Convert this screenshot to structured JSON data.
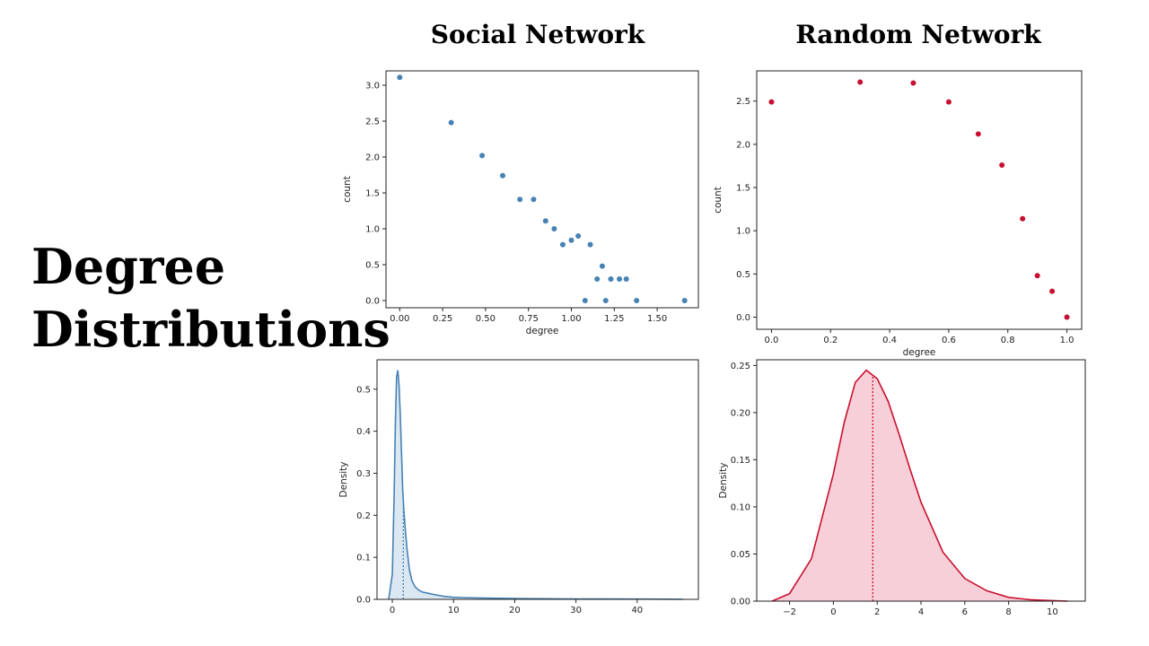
{
  "slide": {
    "title_line1": "Degree",
    "title_line2": "Distributions",
    "column_left": "Social Network",
    "column_right": "Random Network"
  },
  "chart_data": [
    {
      "id": "social-scatter",
      "type": "scatter",
      "title": "",
      "xlabel": "degree",
      "ylabel": "count",
      "xlim": [
        -0.08,
        1.74
      ],
      "ylim": [
        -0.1,
        3.2
      ],
      "xticks": [
        0.0,
        0.25,
        0.5,
        0.75,
        1.0,
        1.25,
        1.5
      ],
      "xtick_labels": [
        "0.00",
        "0.25",
        "0.50",
        "0.75",
        "1.00",
        "1.25",
        "1.50"
      ],
      "yticks": [
        0.0,
        0.5,
        1.0,
        1.5,
        2.0,
        2.5,
        3.0
      ],
      "ytick_labels": [
        "0.0",
        "0.5",
        "1.0",
        "1.5",
        "2.0",
        "2.5",
        "3.0"
      ],
      "color": "#4682b4",
      "points": [
        [
          0.0,
          3.11
        ],
        [
          0.3,
          2.48
        ],
        [
          0.48,
          2.02
        ],
        [
          0.6,
          1.74
        ],
        [
          0.7,
          1.41
        ],
        [
          0.78,
          1.41
        ],
        [
          0.85,
          1.11
        ],
        [
          0.9,
          1.0
        ],
        [
          0.95,
          0.78
        ],
        [
          1.0,
          0.84
        ],
        [
          1.04,
          0.9
        ],
        [
          1.08,
          0.0
        ],
        [
          1.11,
          0.78
        ],
        [
          1.15,
          0.3
        ],
        [
          1.18,
          0.48
        ],
        [
          1.2,
          0.0
        ],
        [
          1.23,
          0.3
        ],
        [
          1.28,
          0.3
        ],
        [
          1.32,
          0.3
        ],
        [
          1.38,
          0.0
        ],
        [
          1.66,
          0.0
        ]
      ]
    },
    {
      "id": "random-scatter",
      "type": "scatter",
      "title": "",
      "xlabel": "degree",
      "ylabel": "count",
      "xlim": [
        -0.05,
        1.05
      ],
      "ylim": [
        -0.14,
        2.85
      ],
      "xticks": [
        0.0,
        0.2,
        0.4,
        0.6,
        0.8,
        1.0
      ],
      "xtick_labels": [
        "0.0",
        "0.2",
        "0.4",
        "0.6",
        "0.8",
        "1.0"
      ],
      "yticks": [
        0.0,
        0.5,
        1.0,
        1.5,
        2.0,
        2.5
      ],
      "ytick_labels": [
        "0.0",
        "0.5",
        "1.0",
        "1.5",
        "2.0",
        "2.5"
      ],
      "color": "#c8102e",
      "points": [
        [
          0.0,
          2.49
        ],
        [
          0.3,
          2.72
        ],
        [
          0.48,
          2.71
        ],
        [
          0.6,
          2.49
        ],
        [
          0.7,
          2.12
        ],
        [
          0.78,
          1.76
        ],
        [
          0.85,
          1.14
        ],
        [
          0.9,
          0.48
        ],
        [
          0.95,
          0.3
        ],
        [
          1.0,
          0.0
        ]
      ]
    },
    {
      "id": "social-kde",
      "type": "area",
      "title": "",
      "xlabel": "",
      "ylabel": "Density",
      "xlim": [
        -2.5,
        50
      ],
      "ylim": [
        0,
        0.57
      ],
      "xticks": [
        0,
        10,
        20,
        30,
        40
      ],
      "xtick_labels": [
        "0",
        "10",
        "20",
        "30",
        "40"
      ],
      "yticks": [
        0.0,
        0.1,
        0.2,
        0.3,
        0.4,
        0.5
      ],
      "ytick_labels": [
        "0.0",
        "0.1",
        "0.2",
        "0.3",
        "0.4",
        "0.5"
      ],
      "color": "#4682b4",
      "fill": "#dbe7f1",
      "mean": 1.8,
      "x": [
        -0.6,
        0,
        0.3,
        0.5,
        0.7,
        0.9,
        1.1,
        1.3,
        1.5,
        1.7,
        1.9,
        2.1,
        2.4,
        2.8,
        3.2,
        3.7,
        4.3,
        5.0,
        6.0,
        7.0,
        8.5,
        10,
        12,
        15,
        20,
        25,
        30,
        35,
        40,
        45,
        47.5
      ],
      "y": [
        0.0,
        0.06,
        0.25,
        0.42,
        0.53,
        0.545,
        0.51,
        0.44,
        0.35,
        0.26,
        0.21,
        0.17,
        0.12,
        0.07,
        0.045,
        0.03,
        0.022,
        0.017,
        0.014,
        0.011,
        0.007,
        0.005,
        0.004,
        0.003,
        0.002,
        0.0015,
        0.001,
        0.001,
        0.0008,
        0.0005,
        0.0
      ]
    },
    {
      "id": "random-kde",
      "type": "area",
      "title": "",
      "xlabel": "",
      "ylabel": "Density",
      "xlim": [
        -3.5,
        11.5
      ],
      "ylim": [
        0,
        0.256
      ],
      "xticks": [
        -2,
        0,
        2,
        4,
        6,
        8,
        10
      ],
      "xtick_labels": [
        "−2",
        "0",
        "2",
        "4",
        "6",
        "8",
        "10"
      ],
      "yticks": [
        0.0,
        0.05,
        0.1,
        0.15,
        0.2,
        0.25
      ],
      "ytick_labels": [
        "0.00",
        "0.05",
        "0.10",
        "0.15",
        "0.20",
        "0.25"
      ],
      "color": "#c8102e",
      "fill": "#f7cfd8",
      "mean": 1.8,
      "x": [
        -2.8,
        -2.0,
        -1.0,
        0.0,
        0.5,
        1.0,
        1.5,
        2.0,
        2.5,
        3.0,
        3.5,
        4.0,
        5.0,
        6.0,
        7.0,
        8.0,
        9.0,
        10.0,
        10.7
      ],
      "y": [
        0.0,
        0.008,
        0.045,
        0.135,
        0.19,
        0.232,
        0.245,
        0.236,
        0.212,
        0.177,
        0.14,
        0.105,
        0.052,
        0.024,
        0.011,
        0.004,
        0.0015,
        0.0005,
        0.0
      ]
    }
  ]
}
